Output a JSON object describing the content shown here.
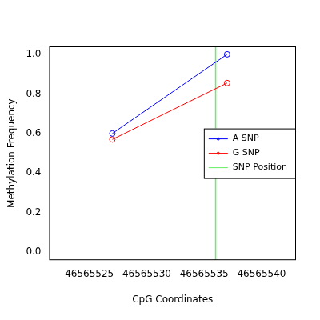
{
  "chart_data": {
    "type": "line",
    "x_label": "CpG Coordinates",
    "y_label": "Methylation Frequency",
    "x": [
      46565527,
      46565537
    ],
    "series": [
      {
        "name": "A SNP",
        "color": "#0000ff",
        "values": [
          0.6,
          1.0
        ],
        "marker": "circle"
      },
      {
        "name": "G SNP",
        "color": "#ff0000",
        "values": [
          0.57,
          0.855
        ],
        "marker": "circle"
      }
    ],
    "snp_position": {
      "name": "SNP Position",
      "value": 46565536,
      "color": "#66ee66"
    },
    "xlim": [
      46565521.5,
      46565543
    ],
    "xticks": [
      46565525,
      46565530,
      46565535,
      46565540
    ],
    "ylim": [
      -0.04,
      1.04
    ],
    "yticks": [
      {
        "value": 0,
        "label": "0.0"
      },
      {
        "value": 0.2,
        "label": "0.2"
      },
      {
        "value": 0.4,
        "label": "0.4"
      },
      {
        "value": 0.6,
        "label": "0.6"
      },
      {
        "value": 0.8,
        "label": "0.8"
      },
      {
        "value": 1,
        "label": "1.0"
      }
    ],
    "grid": false,
    "legend": "right"
  }
}
